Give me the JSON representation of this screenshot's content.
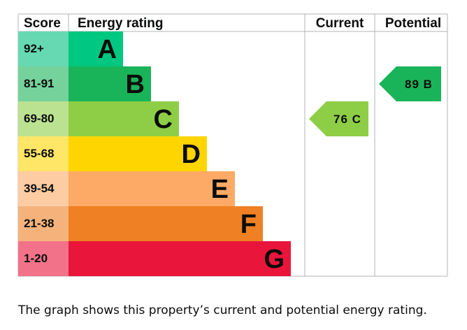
{
  "chart_data": {
    "type": "bar",
    "headers": {
      "score": "Score",
      "rating": "Energy rating",
      "current": "Current",
      "potential": "Potential"
    },
    "bands": [
      {
        "letter": "A",
        "range": "92+",
        "color": "#00c781",
        "score_color": "#66d9b3"
      },
      {
        "letter": "B",
        "range": "81-91",
        "color": "#19b459",
        "score_color": "#75d29b"
      },
      {
        "letter": "C",
        "range": "69-80",
        "color": "#8dce46",
        "score_color": "#bbe290"
      },
      {
        "letter": "D",
        "range": "55-68",
        "color": "#ffd500",
        "score_color": "#ffe666"
      },
      {
        "letter": "E",
        "range": "39-54",
        "color": "#fcaa65",
        "score_color": "#fdcca3"
      },
      {
        "letter": "F",
        "range": "21-38",
        "color": "#ef8023",
        "score_color": "#f5b37b"
      },
      {
        "letter": "G",
        "range": "1-20",
        "color": "#e9153b",
        "score_color": "#f27389"
      }
    ],
    "current": {
      "value": 76,
      "band": "C",
      "label": "76 C",
      "color": "#8dce46"
    },
    "potential": {
      "value": 89,
      "band": "B",
      "label": "89 B",
      "color": "#19b459"
    }
  },
  "caption": "The graph shows this property’s current and potential energy rating."
}
